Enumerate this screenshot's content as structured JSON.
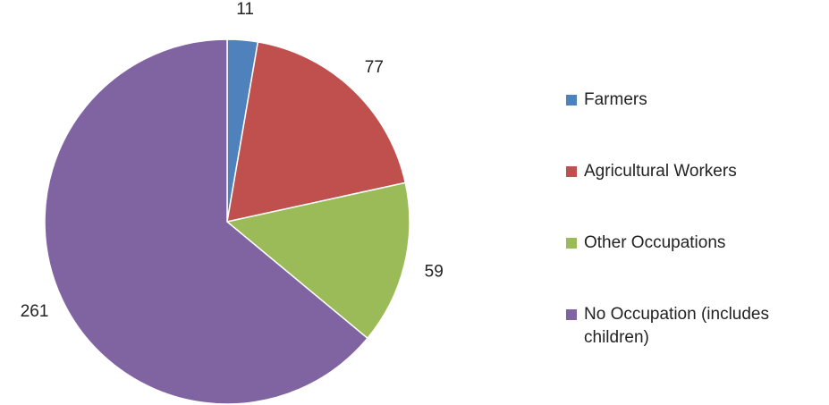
{
  "chart_data": {
    "type": "pie",
    "categories": [
      "Farmers",
      "Agricultural Workers",
      "Other Occupations",
      "No Occupation (includes children)"
    ],
    "values": [
      11,
      77,
      59,
      261
    ],
    "colors": [
      "#4f81bd",
      "#c0504d",
      "#9bbb59",
      "#8064a2"
    ],
    "legend": "right"
  }
}
